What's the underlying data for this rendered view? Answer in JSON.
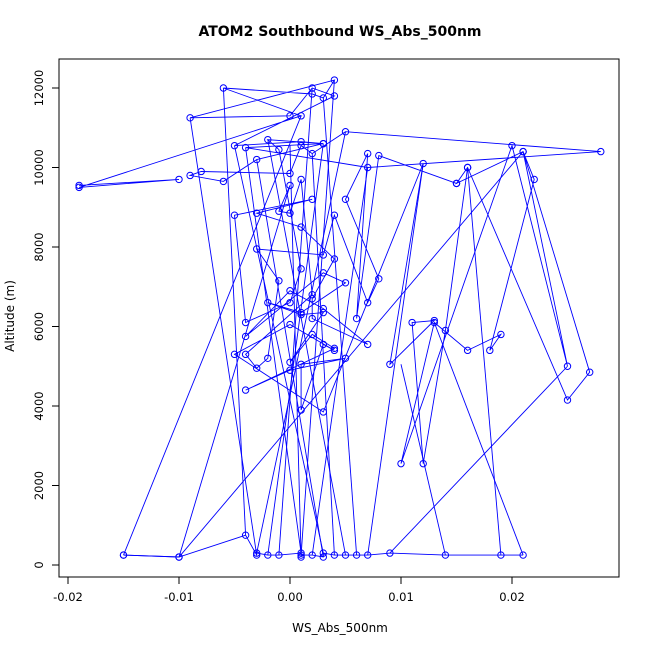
{
  "chart_data": {
    "type": "line",
    "title": "ATOM2 Southbound WS_Abs_500nm",
    "xlabel": "WS_Abs_500nm",
    "ylabel": "Altitude (m)",
    "xlim": [
      -0.02,
      0.028
    ],
    "ylim": [
      0,
      12100
    ],
    "x_ticks": [
      -0.02,
      -0.01,
      0.0,
      0.01,
      0.02
    ],
    "x_tick_labels": [
      "-0.02",
      "-0.01",
      "0.00",
      "0.01",
      "0.02"
    ],
    "y_ticks": [
      0,
      2000,
      4000,
      6000,
      8000,
      10000,
      12000
    ],
    "y_tick_labels": [
      "0",
      "2000",
      "4000",
      "6000",
      "8000",
      "10000",
      "12000"
    ],
    "grid": false,
    "legend": "none",
    "marker": "open-circle",
    "color": "#0000ff",
    "series": [
      {
        "x": [
          -0.019,
          -0.01,
          -0.019,
          0.001,
          -0.006,
          0.002,
          0.003,
          0.004,
          -0.009,
          0.0,
          0.002,
          0.004,
          -0.005,
          0.001,
          0.003,
          -0.004,
          0.007,
          0.028,
          0.005,
          0.002,
          0.001,
          0.0,
          -0.008,
          -0.009,
          -0.006,
          -0.003,
          0.003,
          -0.002,
          -0.001,
          0.001,
          0.0,
          -0.004,
          -0.005,
          0.002,
          -0.003,
          0.001,
          0.004,
          0.002,
          0.002,
          0.007,
          0.003,
          0.0,
          -0.004,
          0.003,
          0.005,
          0.001,
          -0.002,
          0.001,
          0.003,
          0.0,
          0.002,
          0.004,
          -0.004,
          0.0,
          0.005,
          0.001,
          0.001,
          0.003,
          0.004,
          0.0,
          -0.005,
          0.003,
          0.012,
          0.009,
          0.013,
          0.011,
          0.012,
          0.014,
          0.016,
          0.015,
          0.021,
          0.022,
          0.018,
          0.019,
          0.016,
          0.013,
          0.01,
          0.02,
          0.025,
          0.021,
          0.027,
          0.025,
          0.016,
          0.015,
          0.008,
          0.006,
          0.007,
          0.005,
          0.008,
          0.007,
          0.004,
          0.003,
          -0.003,
          -0.001,
          -0.002,
          -0.003,
          -0.004,
          0.002,
          0.001,
          0.0,
          -0.001,
          0.0,
          -0.01,
          -0.015
        ],
        "y": [
          9550,
          9700,
          9500,
          11300,
          12000,
          11850,
          11750,
          12200,
          11250,
          11300,
          12000,
          11800,
          10550,
          10650,
          10600,
          10500,
          10000,
          10400,
          10900,
          10350,
          10550,
          9850,
          9900,
          9800,
          9650,
          10200,
          10600,
          10700,
          10450,
          7450,
          6600,
          6100,
          8800,
          9200,
          8850,
          8500,
          7700,
          6700,
          6200,
          5550,
          6450,
          6900,
          5750,
          7350,
          7100,
          6350,
          6600,
          6300,
          6350,
          5100,
          5800,
          5450,
          4400,
          4900,
          5200,
          5050,
          3900,
          5550,
          5400,
          6050,
          5300,
          3850,
          10100,
          5050,
          6150,
          6100,
          2550,
          5900,
          10000,
          9600,
          10400,
          9700,
          5400,
          5800,
          5400,
          6100,
          2550,
          10550,
          5000,
          10400,
          4850,
          4150,
          10000,
          9600,
          10300,
          6200,
          10350,
          9200,
          7200,
          6600,
          8800,
          7800,
          7950,
          7150,
          5200,
          4950,
          5300,
          6800,
          9700,
          8850,
          8900,
          9550,
          200,
          250
        ]
      },
      {
        "x": [
          -0.015,
          -0.01,
          -0.004,
          -0.003,
          -0.003,
          -0.002,
          -0.001,
          0.001,
          0.001,
          0.001,
          0.002,
          0.003,
          0.003,
          0.004,
          0.005,
          0.006,
          0.007,
          0.009,
          0.014,
          0.019,
          0.021
        ],
        "y": [
          250,
          200,
          750,
          250,
          300,
          250,
          250,
          300,
          200,
          250,
          250,
          200,
          300,
          250,
          250,
          250,
          250,
          300,
          250,
          250,
          250
        ]
      }
    ],
    "links": [
      [
        -0.015,
        250,
        0.001,
        11300
      ],
      [
        -0.01,
        200,
        0.021,
        10400
      ],
      [
        -0.004,
        750,
        -0.006,
        12000
      ],
      [
        -0.003,
        250,
        -0.009,
        11250
      ],
      [
        -0.003,
        300,
        0.005,
        10900
      ],
      [
        -0.002,
        250,
        0.003,
        10600
      ],
      [
        -0.001,
        250,
        0.002,
        12000
      ],
      [
        0.001,
        300,
        -0.004,
        10500
      ],
      [
        0.001,
        200,
        0.0,
        10550
      ],
      [
        0.001,
        250,
        0.004,
        12200
      ],
      [
        0.002,
        250,
        0.007,
        10000
      ],
      [
        0.003,
        200,
        -0.003,
        10200
      ],
      [
        0.003,
        300,
        -0.005,
        10550
      ],
      [
        0.004,
        250,
        0.002,
        10350
      ],
      [
        0.005,
        250,
        -0.002,
        10700
      ],
      [
        0.006,
        250,
        0.003,
        11750
      ],
      [
        0.007,
        250,
        0.012,
        10100
      ],
      [
        0.009,
        300,
        0.025,
        5000
      ],
      [
        0.014,
        250,
        0.01,
        5050
      ],
      [
        0.019,
        250,
        0.016,
        10000
      ],
      [
        0.021,
        250,
        0.013,
        6100
      ]
    ]
  }
}
